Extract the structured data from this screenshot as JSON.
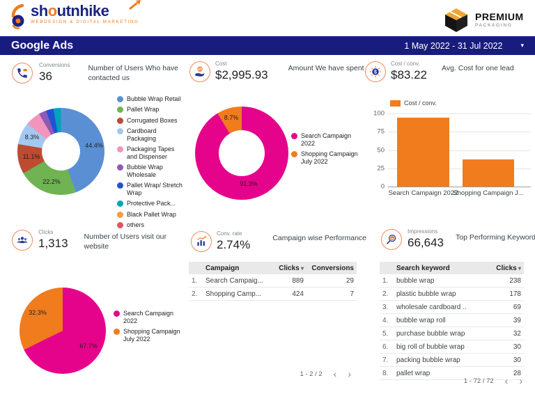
{
  "ui": {
    "sort_arrow": "▾",
    "prev_icon": "‹",
    "next_icon": "›",
    "caret_icon": "▾"
  },
  "colors": {
    "navy": "#1B2380",
    "titlebar_blue": "#181C7E",
    "accent_orange": "#F07C1E",
    "magenta": "#E6038C"
  },
  "header": {
    "brand": {
      "name_pre": "sh",
      "name_o": "o",
      "name_post": "utnhike",
      "tagline": "WEBDESIGN & DIGITAL MARKETING"
    },
    "partner": {
      "name": "PREMIUM",
      "subtitle": "PACKAGING"
    }
  },
  "titlebar": {
    "title": "Google Ads",
    "date_range": "1 May 2022 - 31 Jul 2022"
  },
  "kpis": [
    {
      "icon": "phone-icon",
      "label": "Conversions",
      "value": "36",
      "description": "Number of Users Who have contacted us"
    },
    {
      "icon": "hand-coin-icon",
      "label": "Cost",
      "value": "$2,995.93",
      "description": "Amount We have spent"
    },
    {
      "icon": "gear-dollar-icon",
      "label": "Cost / conv.",
      "value": "$83.22",
      "description": "Avg. Cost for one lead"
    },
    {
      "icon": "people-icon",
      "label": "Clicks",
      "value": "1,313",
      "description": "Number of Users visit our website"
    },
    {
      "icon": "bar-chart-icon",
      "label": "Conv. rate",
      "value": "2.74%",
      "description": "Campaign wise Performance"
    },
    {
      "icon": "search-keyword-icon",
      "label": "Impressions",
      "value": "66,643",
      "description": "Top Performing Keyword"
    }
  ],
  "chart_data": [
    {
      "type": "pie",
      "variant": "donut",
      "name": "product-category-share",
      "legend_position": "right",
      "slices": [
        {
          "label": "Bubble Wrap Retail",
          "value": 44.4,
          "shown_label": "44.4%",
          "color": "#5B8FD4"
        },
        {
          "label": "Pallet Wrap",
          "value": 22.2,
          "shown_label": "22.2%",
          "color": "#6FB353"
        },
        {
          "label": "Corrugated Boxes",
          "value": 11.1,
          "shown_label": "11.1%",
          "color": "#BC4B31"
        },
        {
          "label": "Cardboard Packaging",
          "value": 8.3,
          "shown_label": "8.3%",
          "color": "#A4C8F0"
        },
        {
          "label": "Packaging Tapes and Dispenser",
          "value": 5.6,
          "shown_label": "",
          "color": "#F295BC"
        },
        {
          "label": "Bubble Wrap Wholesale",
          "value": 2.8,
          "shown_label": "",
          "color": "#8E5AB8"
        },
        {
          "label": "Pallet Wrap/ Stretch Wrap",
          "value": 2.8,
          "shown_label": "",
          "color": "#2053D4"
        },
        {
          "label": "Protective Pack...",
          "value": 2.8,
          "shown_label": "",
          "color": "#00A3B8"
        },
        {
          "label": "Black Pallet Wrap",
          "value": 0,
          "shown_label": "",
          "color": "#F89C3C"
        },
        {
          "label": "others",
          "value": 0,
          "shown_label": "",
          "color": "#E25563"
        }
      ]
    },
    {
      "type": "pie",
      "variant": "donut",
      "name": "cost-by-campaign",
      "legend_position": "right",
      "slices": [
        {
          "label": "Search Campaign 2022",
          "value": 91.3,
          "shown_label": "91.3%",
          "color": "#E6038C"
        },
        {
          "label": "Shopping Campaign July 2022",
          "value": 8.7,
          "shown_label": "8.7%",
          "color": "#F07C1E"
        }
      ]
    },
    {
      "type": "bar",
      "name": "cost-per-conversion-by-campaign",
      "series_label": "Cost / conv.",
      "categories": [
        "Search Campaign 2022",
        "Shopping Campaign J..."
      ],
      "values": [
        94,
        37
      ],
      "bar_color": "#F07C1E",
      "ylim": [
        0,
        100
      ],
      "yticks": [
        0,
        25,
        50,
        75,
        100
      ],
      "grid": true,
      "legend_position": "top"
    },
    {
      "type": "pie",
      "variant": "full",
      "name": "clicks-by-campaign",
      "legend_position": "right",
      "slices": [
        {
          "label": "Search Campaign 2022",
          "value": 67.7,
          "shown_label": "67.7%",
          "color": "#E6038C"
        },
        {
          "label": "Shopping Campaign July 2022",
          "value": 32.3,
          "shown_label": "32.3%",
          "color": "#F07C1E"
        }
      ]
    },
    {
      "type": "table",
      "name": "campaign-performance",
      "columns": [
        "Campaign",
        "Clicks",
        "Conversions"
      ],
      "sorted_by": "Clicks",
      "rows": [
        {
          "index": "1.",
          "cells": [
            "Search Campaig...",
            "889",
            "29"
          ]
        },
        {
          "index": "2.",
          "cells": [
            "Shopping Camp...",
            "424",
            "7"
          ]
        }
      ],
      "pagination": "1 - 2 / 2"
    },
    {
      "type": "table",
      "name": "search-keywords",
      "columns": [
        "Search keyword",
        "Clicks"
      ],
      "sorted_by": "Clicks",
      "rows": [
        {
          "index": "1.",
          "cells": [
            "bubble wrap",
            "238"
          ]
        },
        {
          "index": "2.",
          "cells": [
            "plastic bubble wrap",
            "178"
          ]
        },
        {
          "index": "3.",
          "cells": [
            "wholesale cardboard ..",
            "69"
          ]
        },
        {
          "index": "4.",
          "cells": [
            "bubble wrap roll",
            "39"
          ]
        },
        {
          "index": "5.",
          "cells": [
            "purchase bubble wrap",
            "32"
          ]
        },
        {
          "index": "6.",
          "cells": [
            "big roll of bubble wrap",
            "30"
          ]
        },
        {
          "index": "7.",
          "cells": [
            "packing bubble wrap",
            "30"
          ]
        },
        {
          "index": "8.",
          "cells": [
            "pallet wrap",
            "28"
          ]
        }
      ],
      "pagination": "1 - 72 / 72"
    }
  ]
}
